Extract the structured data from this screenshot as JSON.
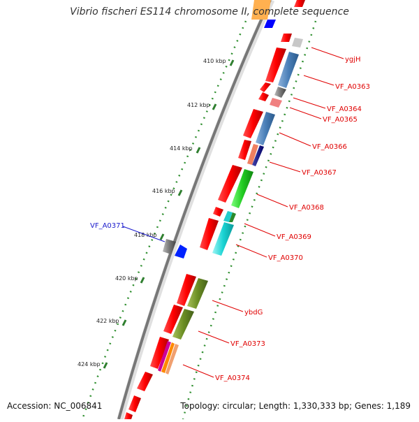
{
  "title": "Vibrio fischeri ES114 chromosome II, complete sequence",
  "footer": {
    "accession": "Accession: NC_006841",
    "topology": "Topology: circular; Length: 1,330,333 bp; Genes: 1,189"
  },
  "colors": {
    "backbone": "#888888",
    "gene_red": "#ff0000",
    "tick_green": "#2f7f2f",
    "label_red": "#e00000",
    "label_blue": "#1a1acc"
  },
  "ticks": [
    "410 kbp",
    "412 kbp",
    "414 kbp",
    "416 kbp",
    "418 kbp",
    "420 kbp",
    "422 kbp",
    "424 kbp"
  ],
  "gene_labels": [
    {
      "text": "ygjH",
      "color": "red"
    },
    {
      "text": "VF_A0363",
      "color": "red"
    },
    {
      "text": "VF_A0364",
      "color": "red"
    },
    {
      "text": "VF_A0365",
      "color": "red"
    },
    {
      "text": "VF_A0366",
      "color": "red"
    },
    {
      "text": "VF_A0367",
      "color": "red"
    },
    {
      "text": "VF_A0368",
      "color": "red"
    },
    {
      "text": "VF_A0369",
      "color": "red"
    },
    {
      "text": "VF_A0370",
      "color": "red"
    },
    {
      "text": "ybdG",
      "color": "red"
    },
    {
      "text": "VF_A0373",
      "color": "red"
    },
    {
      "text": "VF_A0374",
      "color": "red"
    },
    {
      "text": "VF_A0371",
      "color": "blue"
    }
  ]
}
